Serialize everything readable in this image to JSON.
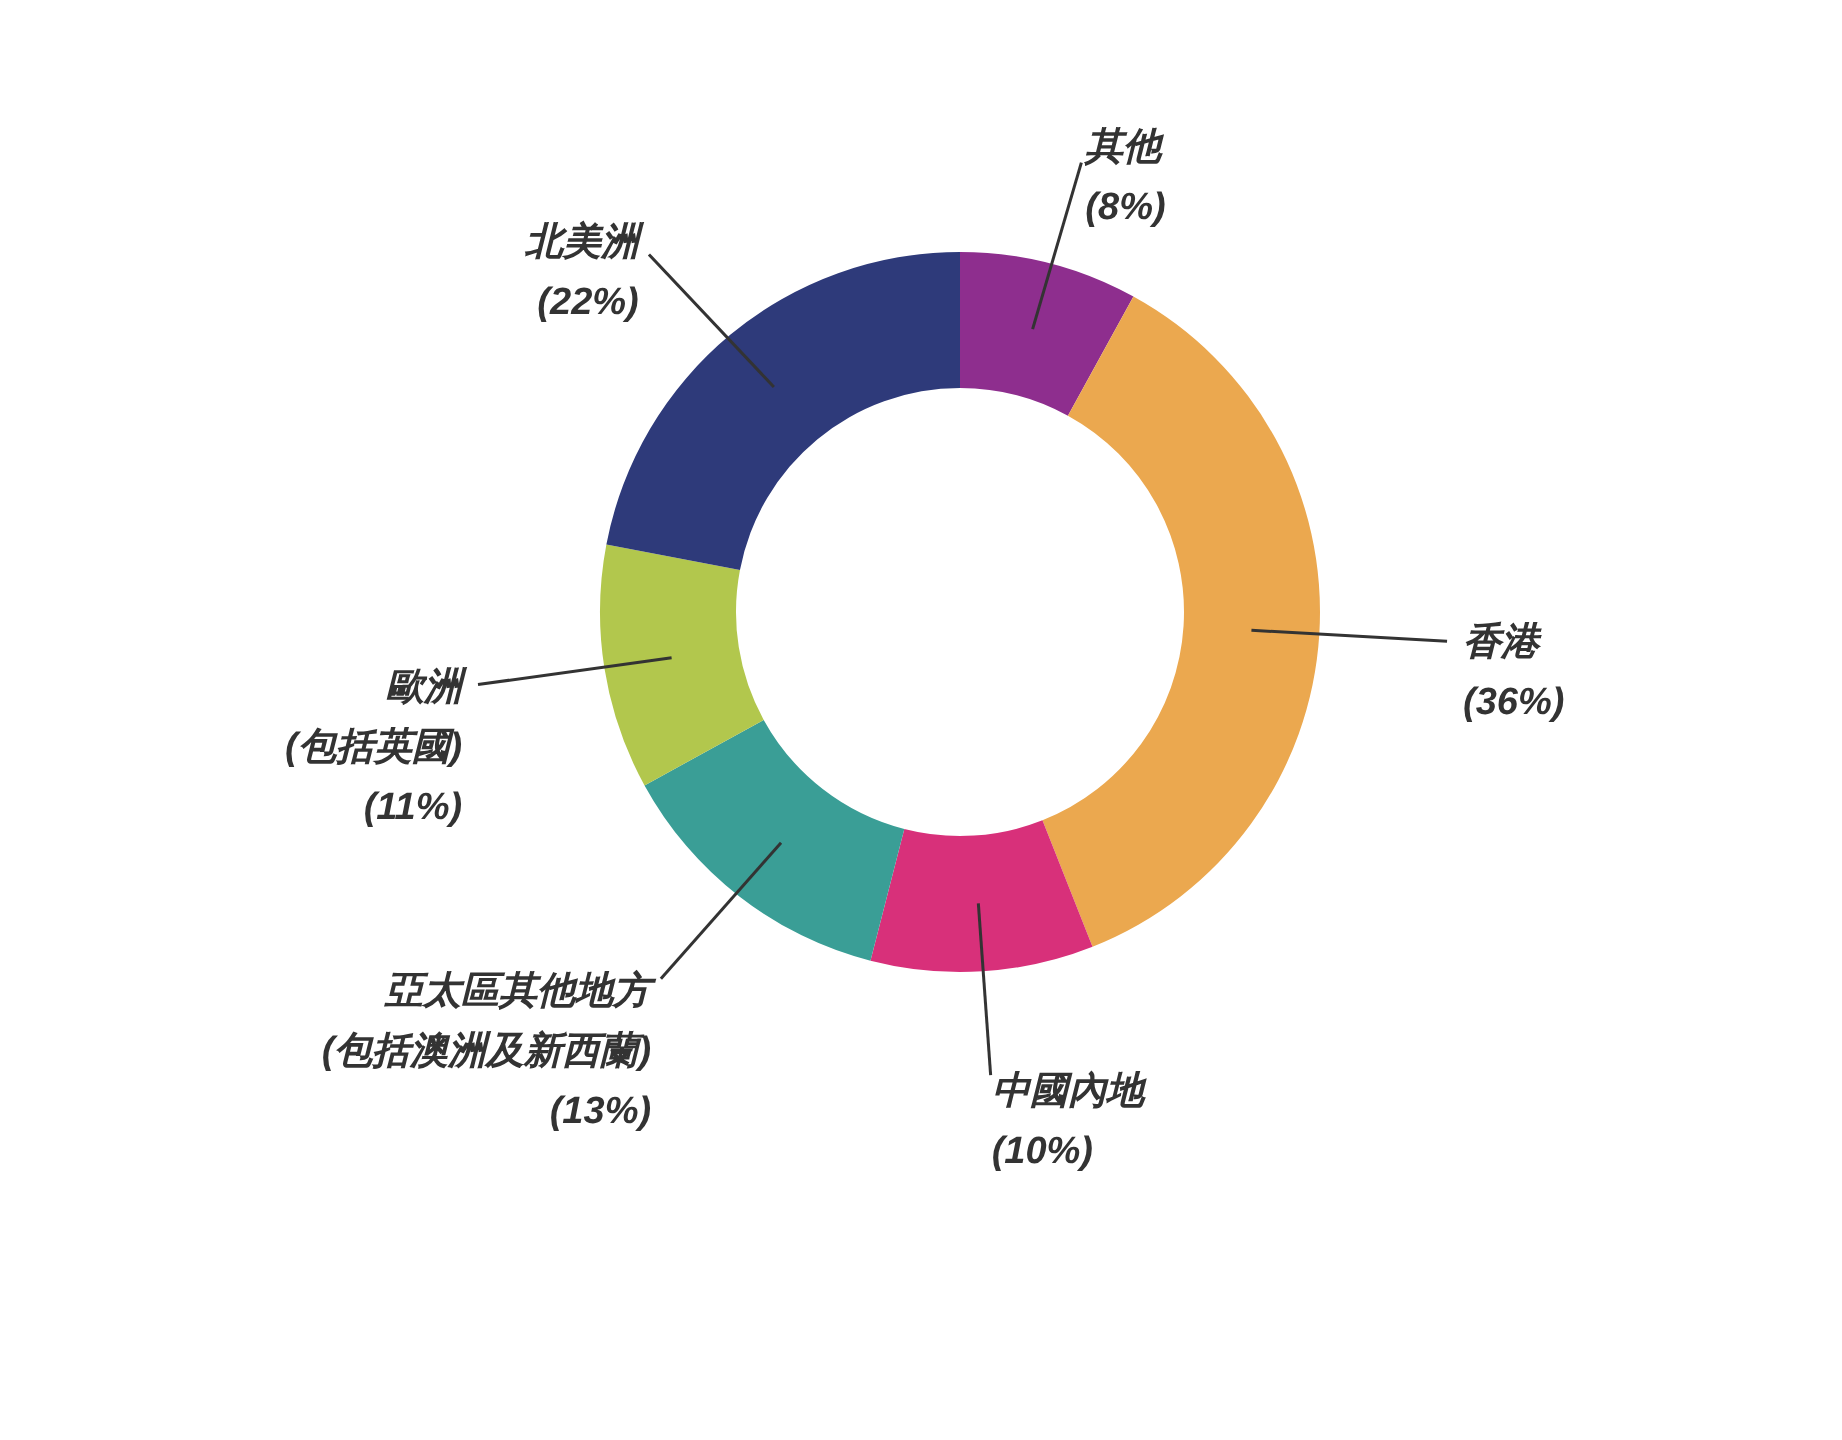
{
  "chart_data": {
    "type": "donut",
    "categories": [
      "其他",
      "香港",
      "中國內地",
      "亞太區其他地方 (包括澳洲及新西蘭)",
      "歐洲 (包括英國)",
      "北美洲"
    ],
    "values": [
      8,
      36,
      10,
      13,
      11,
      22
    ],
    "value_labels": [
      "(8%)",
      "(36%)",
      "(10%)",
      "(13%)",
      "(11%)",
      "(22%)"
    ],
    "colors": [
      "#8e2e8e",
      "#eba84f",
      "#d8307a",
      "#3a9e96",
      "#b2c74d",
      "#2e3a7a"
    ]
  }
}
